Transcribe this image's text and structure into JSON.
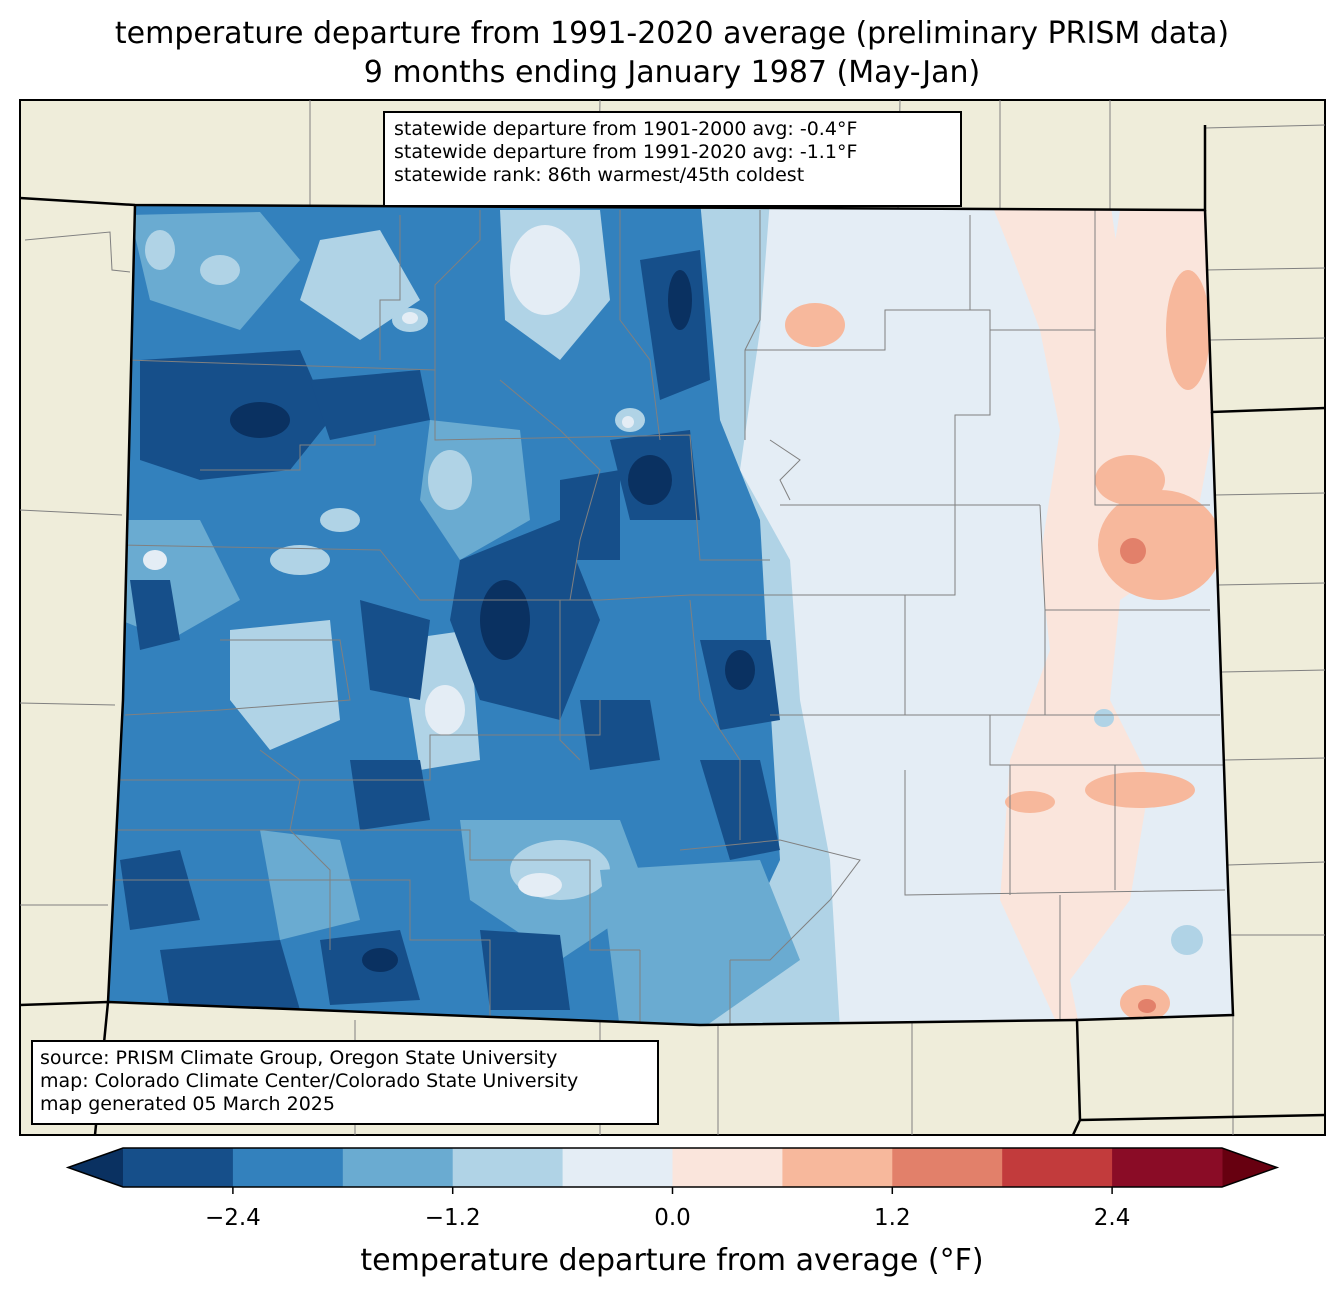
{
  "title": {
    "line1": "temperature departure from 1991-2020 average (preliminary PRISM data)",
    "line2": "9 months ending January 1987 (May-Jan)"
  },
  "stats_box": {
    "line1": "statewide departure from 1901-2000 avg: -0.4°F",
    "line2": "statewide departure from 1991-2020 avg: -1.1°F",
    "line3": "statewide rank: 86th warmest/45th coldest"
  },
  "credits_box": {
    "line1": "source: PRISM Climate Group, Oregon State University",
    "line2": "map: Colorado Climate Center/Colorado State University",
    "line3": "map generated 05 March 2025"
  },
  "colorbar": {
    "label": "temperature departure from average (°F)",
    "ticks": [
      "−2.4",
      "−1.2",
      "0.0",
      "1.2",
      "2.4"
    ],
    "tick_values": [
      -2.4,
      -1.2,
      0.0,
      1.2,
      2.4
    ],
    "bounds": [
      -3.0,
      -2.4,
      -1.8,
      -1.2,
      -0.6,
      0.0,
      0.6,
      1.2,
      1.8,
      2.4,
      3.0
    ],
    "colors": [
      "#164f8a",
      "#3381bd",
      "#6aabd1",
      "#b0d3e6",
      "#e4edf5",
      "#fae5dc",
      "#f7b89c",
      "#e2806a",
      "#c23b3c",
      "#8a0c26"
    ],
    "extend_colors": {
      "under": "#0a3161",
      "over": "#670010"
    }
  },
  "colors": {
    "land_background": "#efedda",
    "state_border": "#000000",
    "county_border": "#808080"
  }
}
